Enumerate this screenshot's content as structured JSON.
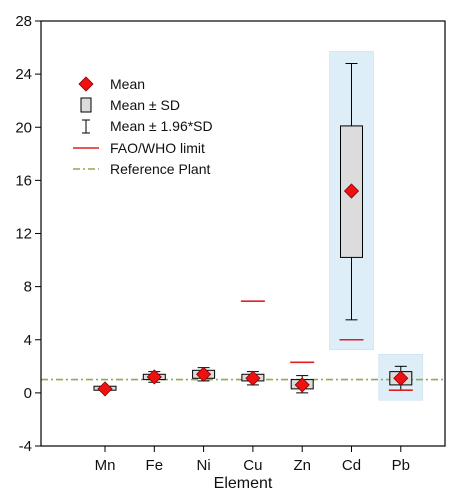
{
  "chart_data": {
    "type": "box",
    "title": "",
    "xlabel": "Element",
    "ylabel": "",
    "categories": [
      "Mn",
      "Fe",
      "Ni",
      "Cu",
      "Zn",
      "Cd",
      "Pb"
    ],
    "ylim": [
      -4,
      28
    ],
    "yticks": [
      "-4",
      "0",
      "4",
      "8",
      "12",
      "16",
      "20",
      "24",
      "28"
    ],
    "mean": [
      0.3,
      1.2,
      1.4,
      1.1,
      0.6,
      15.2,
      1.1
    ],
    "sd_low": [
      0.2,
      1.0,
      1.1,
      0.9,
      0.3,
      10.2,
      0.6
    ],
    "sd_high": [
      0.5,
      1.4,
      1.7,
      1.4,
      1.0,
      20.1,
      1.6
    ],
    "ci_low": [
      0.2,
      0.8,
      0.9,
      0.6,
      0.0,
      5.5,
      0.2
    ],
    "ci_high": [
      0.4,
      1.6,
      1.9,
      1.6,
      1.3,
      24.8,
      2.0
    ],
    "fao_who_limit": [
      null,
      null,
      null,
      6.9,
      2.3,
      4.0,
      0.2
    ],
    "reference_plant": 1.0,
    "highlighted_categories": [
      "Cd",
      "Pb"
    ],
    "legend": [
      "Mean",
      "Mean ± SD",
      "Mean ± 1.96*SD",
      "FAO/WHO limit",
      "Reference Plant"
    ],
    "legend_position": "top-left",
    "colors": {
      "mean_marker": "#ee1111",
      "box_fill": "#dcdcdc",
      "limit_line": "#e02020",
      "reference_line": "#8faa50",
      "highlight": "#ddeef8"
    }
  }
}
